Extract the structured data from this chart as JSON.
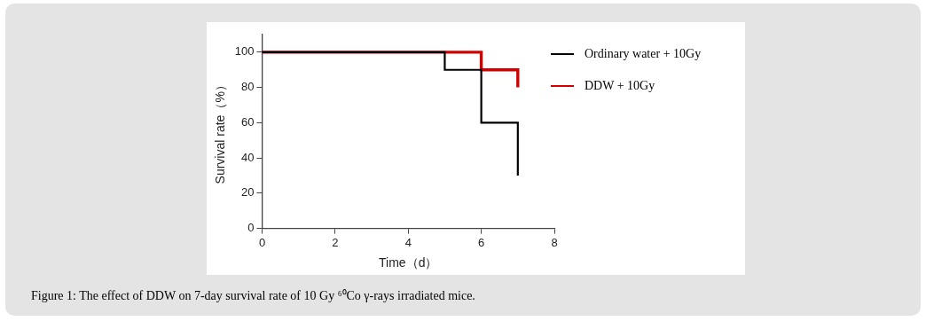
{
  "chart_data": {
    "type": "step",
    "xlabel": "Time（d）",
    "ylabel": "Survival rate（%）",
    "xlim": [
      0,
      8
    ],
    "xticks": [
      0,
      2,
      4,
      6,
      8
    ],
    "ylim": [
      0,
      110
    ],
    "yticks": [
      0,
      20,
      40,
      60,
      80,
      100
    ],
    "grid": false,
    "legend": "top right",
    "annotations": [
      "Figure 1: The effect of DDW on 7-day survival rate of 10 Gy ⁶⁰Co γ-rays irradiated mice."
    ],
    "series": [
      {
        "name": "Ordinary water + 10Gy",
        "color": "#000000",
        "x": [
          0,
          5,
          6,
          7
        ],
        "values": [
          100,
          90,
          60,
          30
        ]
      },
      {
        "name": "DDW + 10Gy",
        "color": "#d40000",
        "x": [
          0,
          6,
          7
        ],
        "values": [
          100,
          90,
          80
        ]
      }
    ]
  }
}
